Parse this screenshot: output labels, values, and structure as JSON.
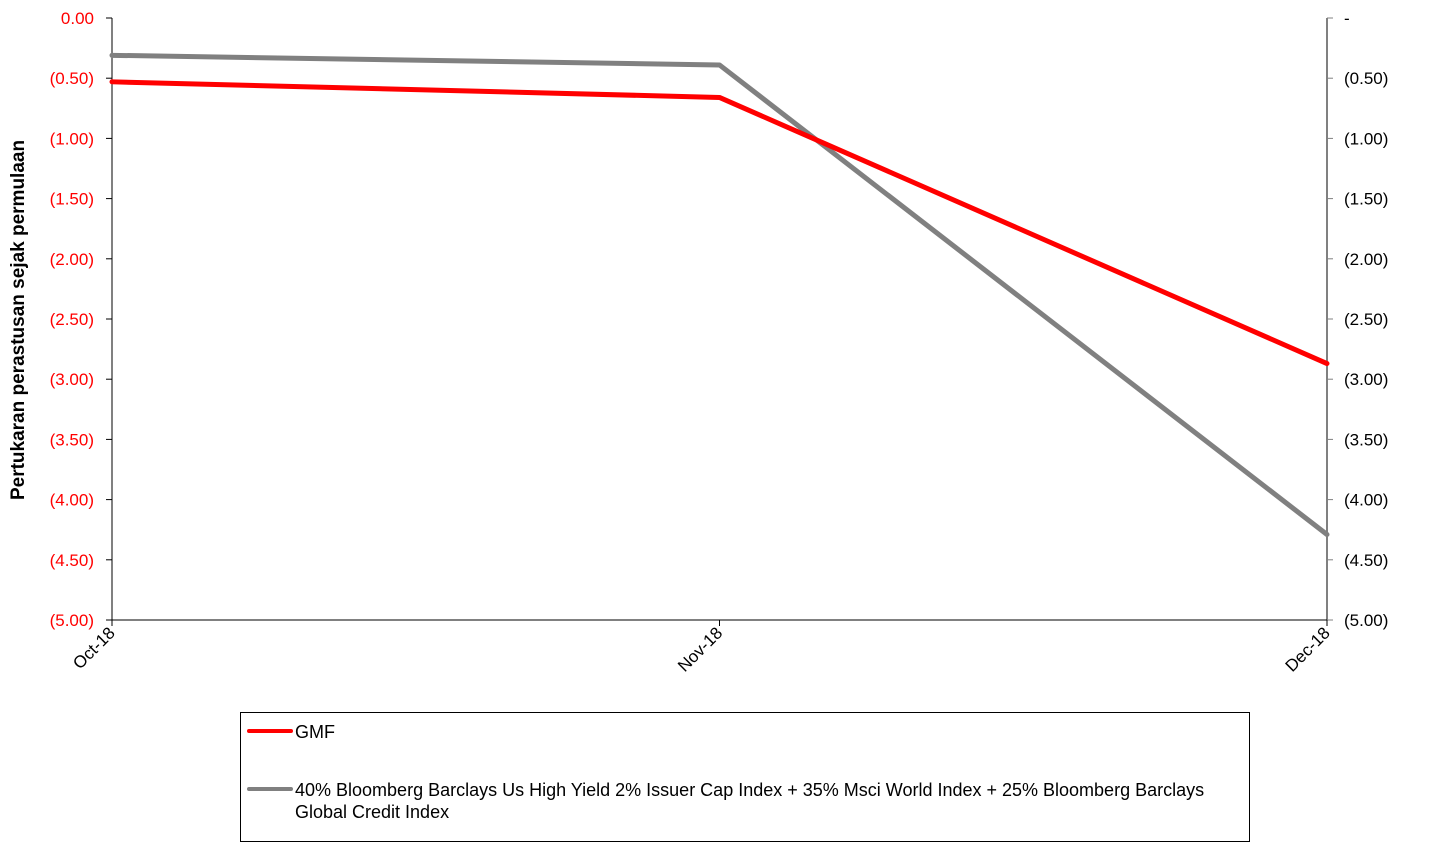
{
  "chart_data": {
    "type": "line",
    "xlabel": "",
    "ylabel": "Pertukaran perastusan sejak permulaan",
    "categories": [
      "Oct-18",
      "Nov-18",
      "Dec-18"
    ],
    "ylim": [
      -5.0,
      0.0
    ],
    "y2lim": [
      -5.0,
      0.0
    ],
    "left_ticks": [
      "0.00",
      "(0.50)",
      "(1.00)",
      "(1.50)",
      "(2.00)",
      "(2.50)",
      "(3.00)",
      "(3.50)",
      "(4.00)",
      "(4.50)",
      "(5.00)"
    ],
    "right_ticks": [
      "-",
      "(0.50)",
      "(1.00)",
      "(1.50)",
      "(2.00)",
      "(2.50)",
      "(3.00)",
      "(3.50)",
      "(4.00)",
      "(4.50)",
      "(5.00)"
    ],
    "tick_values": [
      0,
      -0.5,
      -1.0,
      -1.5,
      -2.0,
      -2.5,
      -3.0,
      -3.5,
      -4.0,
      -4.5,
      -5.0
    ],
    "grid": false,
    "legend_position": "bottom",
    "series": [
      {
        "name": "GMF",
        "axis": "left",
        "color": "#ff0000",
        "values": [
          -0.53,
          -0.66,
          -2.87
        ]
      },
      {
        "name": "40% Bloomberg Barclays Us High Yield 2% Issuer Cap Index  + 35% Msci World Index + 25% Bloomberg Barclays Global Credit Index",
        "axis": "right",
        "color": "#808080",
        "values": [
          -0.31,
          -0.39,
          -4.29
        ]
      }
    ]
  },
  "colors": {
    "left_axis_text": "#ff0000",
    "right_axis": "#808080",
    "gmf": "#ff0000",
    "benchmark": "#808080"
  }
}
